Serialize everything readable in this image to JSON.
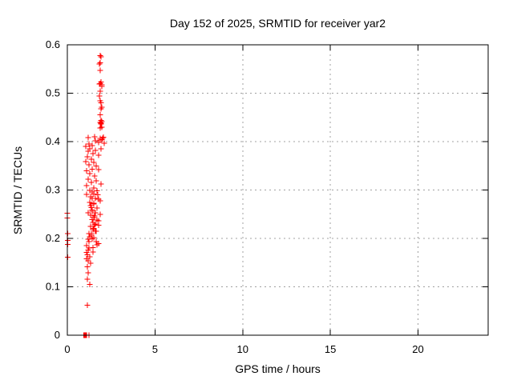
{
  "chart_data": {
    "type": "scatter",
    "title": "Day 152 of 2025, SRMTID for receiver yar2",
    "xlabel": "GPS time / hours",
    "ylabel": "SRMTID / TECUs",
    "xlim": [
      0,
      24
    ],
    "ylim": [
      0,
      0.6
    ],
    "xtick_values": [
      0,
      5,
      10,
      15,
      20
    ],
    "xtick_labels": [
      "0",
      "5",
      "10",
      "15",
      "20"
    ],
    "ytick_values": [
      0,
      0.1,
      0.2,
      0.3,
      0.4,
      0.5,
      0.6
    ],
    "ytick_labels": [
      "0",
      "0.1",
      "0.2",
      "0.3",
      "0.4",
      "0.5",
      "0.6"
    ],
    "grid": true,
    "legend": "none",
    "marker": "plus",
    "marker_size": 7,
    "marker_color": "#ff0000",
    "axis_color": "#000000",
    "grid_color": "#a0a0a0",
    "background_color": "#ffffff",
    "series": [
      {
        "name": "SRMTID",
        "points": [
          [
            0.0,
            0.252
          ],
          [
            0.0,
            0.242
          ],
          [
            0.02,
            0.21
          ],
          [
            0.03,
            0.196
          ],
          [
            0.02,
            0.188
          ],
          [
            0.03,
            0.161
          ],
          [
            0.93,
            0.0
          ],
          [
            0.96,
            0.0
          ],
          [
            0.99,
            0.0
          ],
          [
            1.03,
            0.0
          ],
          [
            1.06,
            0.0
          ],
          [
            1.1,
            0.0
          ],
          [
            1.24,
            0.0
          ],
          [
            1.14,
            0.062
          ],
          [
            1.28,
            0.105
          ],
          [
            1.14,
            0.116
          ],
          [
            1.19,
            0.129
          ],
          [
            1.14,
            0.141
          ],
          [
            1.32,
            0.149
          ],
          [
            1.19,
            0.154
          ],
          [
            1.1,
            0.158
          ],
          [
            1.28,
            0.162
          ],
          [
            1.14,
            0.166
          ],
          [
            1.1,
            0.171
          ],
          [
            1.46,
            0.172
          ],
          [
            1.19,
            0.176
          ],
          [
            1.23,
            0.18
          ],
          [
            1.46,
            0.181
          ],
          [
            1.1,
            0.185
          ],
          [
            1.69,
            0.187
          ],
          [
            1.78,
            0.189
          ],
          [
            1.23,
            0.193
          ],
          [
            1.65,
            0.193
          ],
          [
            1.19,
            0.198
          ],
          [
            1.42,
            0.199
          ],
          [
            1.28,
            0.203
          ],
          [
            1.51,
            0.202
          ],
          [
            1.37,
            0.207
          ],
          [
            1.23,
            0.21
          ],
          [
            1.37,
            0.21
          ],
          [
            1.64,
            0.215
          ],
          [
            1.6,
            0.215
          ],
          [
            1.46,
            0.218
          ],
          [
            1.51,
            0.221
          ],
          [
            1.33,
            0.225
          ],
          [
            1.78,
            0.227
          ],
          [
            1.56,
            0.228
          ],
          [
            1.6,
            0.23
          ],
          [
            1.46,
            0.233
          ],
          [
            1.78,
            0.236
          ],
          [
            1.69,
            0.238
          ],
          [
            1.42,
            0.239
          ],
          [
            1.51,
            0.243
          ],
          [
            1.55,
            0.246
          ],
          [
            1.33,
            0.248
          ],
          [
            1.87,
            0.25
          ],
          [
            1.19,
            0.253
          ],
          [
            1.6,
            0.253
          ],
          [
            1.42,
            0.256
          ],
          [
            1.42,
            0.259
          ],
          [
            1.69,
            0.263
          ],
          [
            1.37,
            0.264
          ],
          [
            1.33,
            0.268
          ],
          [
            1.51,
            0.271
          ],
          [
            1.51,
            0.273
          ],
          [
            1.28,
            0.274
          ],
          [
            1.87,
            0.278
          ],
          [
            1.78,
            0.281
          ],
          [
            1.42,
            0.283
          ],
          [
            1.6,
            0.283
          ],
          [
            1.33,
            0.286
          ],
          [
            1.73,
            0.29
          ],
          [
            1.1,
            0.291
          ],
          [
            1.51,
            0.292
          ],
          [
            1.42,
            0.296
          ],
          [
            1.69,
            0.298
          ],
          [
            1.28,
            0.299
          ],
          [
            1.51,
            0.304
          ],
          [
            1.1,
            0.309
          ],
          [
            1.92,
            0.312
          ],
          [
            1.37,
            0.316
          ],
          [
            1.65,
            0.319
          ],
          [
            1.19,
            0.322
          ],
          [
            1.56,
            0.329
          ],
          [
            1.28,
            0.334
          ],
          [
            1.1,
            0.34
          ],
          [
            1.78,
            0.342
          ],
          [
            1.42,
            0.343
          ],
          [
            1.65,
            0.35
          ],
          [
            1.24,
            0.352
          ],
          [
            1.51,
            0.357
          ],
          [
            1.05,
            0.359
          ],
          [
            1.37,
            0.364
          ],
          [
            1.14,
            0.369
          ],
          [
            1.78,
            0.372
          ],
          [
            1.46,
            0.375
          ],
          [
            1.19,
            0.38
          ],
          [
            1.6,
            0.382
          ],
          [
            1.92,
            0.385
          ],
          [
            1.28,
            0.385
          ],
          [
            1.05,
            0.39
          ],
          [
            1.42,
            0.392
          ],
          [
            1.24,
            0.395
          ],
          [
            2.1,
            0.397
          ],
          [
            1.78,
            0.398
          ],
          [
            1.6,
            0.402
          ],
          [
            1.88,
            0.403
          ],
          [
            1.96,
            0.404
          ],
          [
            2.01,
            0.407
          ],
          [
            1.88,
            0.407
          ],
          [
            1.19,
            0.408
          ],
          [
            2.06,
            0.409
          ],
          [
            1.56,
            0.41
          ],
          [
            1.88,
            0.428
          ],
          [
            1.96,
            0.43
          ],
          [
            1.92,
            0.436
          ],
          [
            1.92,
            0.438
          ],
          [
            1.88,
            0.44
          ],
          [
            1.96,
            0.441
          ],
          [
            1.92,
            0.444
          ],
          [
            1.88,
            0.455
          ],
          [
            1.92,
            0.468
          ],
          [
            1.97,
            0.471
          ],
          [
            1.92,
            0.48
          ],
          [
            1.88,
            0.484
          ],
          [
            1.83,
            0.494
          ],
          [
            1.88,
            0.504
          ],
          [
            1.97,
            0.514
          ],
          [
            1.97,
            0.517
          ],
          [
            1.83,
            0.519
          ],
          [
            1.88,
            0.52
          ],
          [
            1.92,
            0.523
          ],
          [
            1.88,
            0.547
          ],
          [
            1.83,
            0.56
          ],
          [
            1.88,
            0.563
          ],
          [
            1.92,
            0.575
          ],
          [
            1.88,
            0.578
          ]
        ]
      }
    ]
  }
}
